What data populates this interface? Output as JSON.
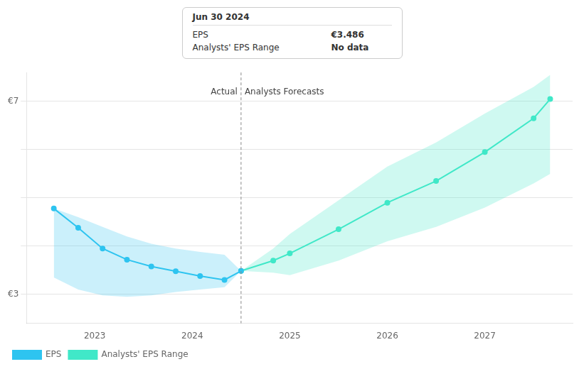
{
  "chart_data": {
    "type": "line",
    "series": [
      {
        "name": "EPS",
        "color": "#2ec4f0",
        "marker": "o",
        "x": [
          2022.58,
          2022.83,
          2023.08,
          2023.33,
          2023.58,
          2023.83,
          2024.08,
          2024.33,
          2024.5
        ],
        "values": [
          4.78,
          4.38,
          3.95,
          3.72,
          3.58,
          3.48,
          3.38,
          3.3,
          3.486
        ],
        "lower": [
          3.35,
          3.1,
          2.98,
          2.95,
          2.98,
          3.05,
          3.1,
          3.15,
          3.486
        ],
        "upper": [
          4.78,
          4.6,
          4.4,
          4.2,
          4.05,
          3.95,
          3.88,
          3.82,
          3.486
        ]
      },
      {
        "name": "Analysts' EPS Range",
        "color": "#40e8c8",
        "marker": "o",
        "x": [
          2024.5,
          2024.83,
          2025.0,
          2025.5,
          2026.0,
          2026.5,
          2027.0,
          2027.5,
          2027.67
        ],
        "values": [
          3.486,
          3.7,
          3.85,
          4.35,
          4.9,
          5.35,
          5.95,
          6.65,
          7.05
        ],
        "lower": [
          3.486,
          3.45,
          3.4,
          3.7,
          4.1,
          4.4,
          4.8,
          5.3,
          5.5
        ],
        "upper": [
          3.486,
          3.95,
          4.25,
          4.95,
          5.65,
          6.15,
          6.75,
          7.3,
          7.55
        ]
      }
    ],
    "xlim": [
      2022.3,
      2027.9
    ],
    "xticks": [
      2023,
      2024,
      2025,
      2026,
      2027
    ],
    "ylim": [
      2.4,
      7.6
    ],
    "yticks": [
      {
        "value": 3,
        "label": "€3"
      },
      {
        "value": 4,
        "label": null
      },
      {
        "value": 5,
        "label": null
      },
      {
        "value": 6,
        "label": null
      },
      {
        "value": 7,
        "label": "€7"
      }
    ],
    "grid": true,
    "legend": "lower left",
    "vlines": [
      2024.5
    ],
    "annotations": [
      {
        "text": "Actual",
        "x": 2024.5,
        "y": 7.1,
        "side": "left"
      },
      {
        "text": "Analysts Forecasts",
        "x": 2024.5,
        "y": 7.1,
        "side": "right"
      }
    ],
    "tooltip": {
      "title": "Jun 30 2024",
      "rows": [
        {
          "label": "EPS",
          "value": "€3.486"
        },
        {
          "label": "Analysts' EPS Range",
          "value": "No data"
        }
      ]
    }
  }
}
